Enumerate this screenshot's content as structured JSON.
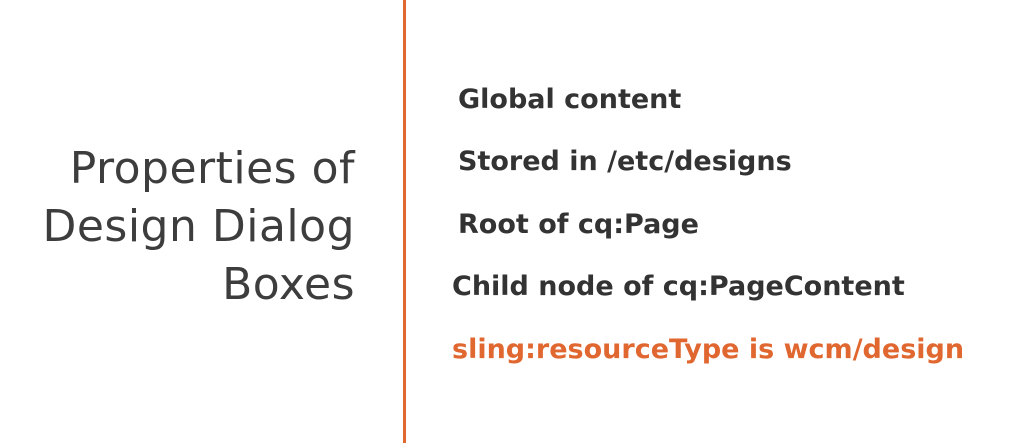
{
  "title": {
    "lines": [
      "Properties of",
      "Design Dialog",
      "Boxes"
    ]
  },
  "bullets": [
    "Global content",
    "Stored in /etc/designs",
    "Root of cq:Page",
    "Child node of cq:PageContent",
    "sling:resourceType is wcm/design"
  ],
  "colors": {
    "accent": "#e0672f",
    "text": "#333333",
    "title_text": "#3d3d3d",
    "background": "#ffffff"
  }
}
